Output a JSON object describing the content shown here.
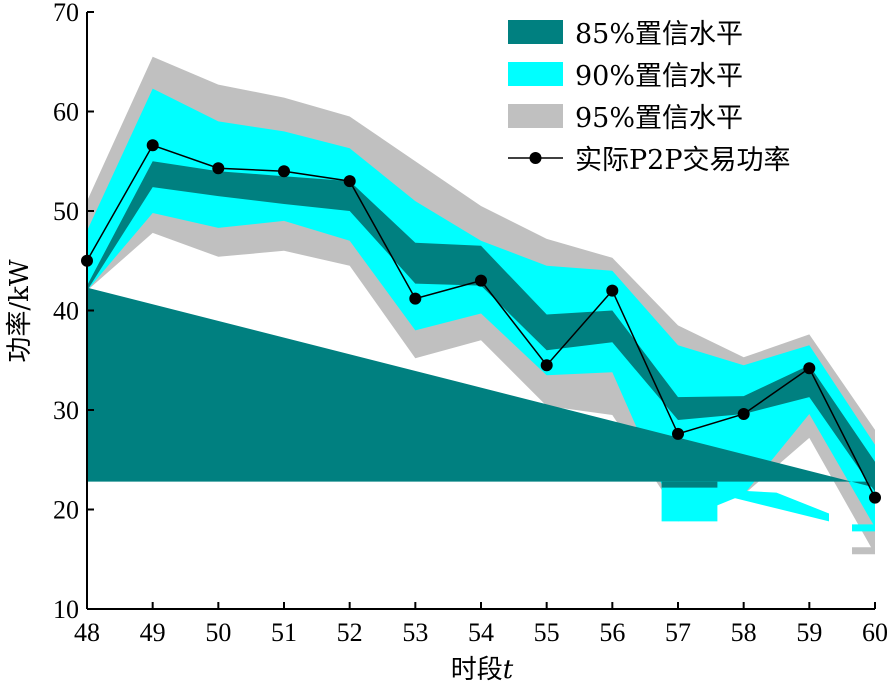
{
  "chart_data": {
    "type": "area",
    "title": "",
    "xlabel": "时段",
    "xlabel_var": "t",
    "ylabel": "功率/kW",
    "x": [
      48,
      49,
      50,
      51,
      52,
      53,
      54,
      55,
      56,
      57,
      58,
      59,
      60
    ],
    "xlim": [
      48,
      60
    ],
    "ylim": [
      10,
      70
    ],
    "yticks": [
      10,
      20,
      30,
      40,
      50,
      60,
      70
    ],
    "grid": false,
    "legend_position": "top-right",
    "series": [
      {
        "name": "95%置信水平",
        "kind": "band",
        "color": "#c0c0c0",
        "upper": [
          51.0,
          65.5,
          62.7,
          61.4,
          59.5,
          55.0,
          50.5,
          47.2,
          45.3,
          38.5,
          35.3,
          37.6,
          28.0
        ],
        "lower": [
          42.0,
          47.8,
          45.4,
          46.0,
          44.5,
          35.2,
          37.0,
          30.4,
          29.5,
          19.5,
          21.5,
          27.2,
          15.5
        ]
      },
      {
        "name": "90%置信水平",
        "kind": "band",
        "color": "#00ffff",
        "upper": [
          48.0,
          62.3,
          59.0,
          58.0,
          56.3,
          51.0,
          47.0,
          44.5,
          44.0,
          36.5,
          34.5,
          36.5,
          26.5
        ],
        "lower": [
          42.0,
          49.8,
          48.3,
          49.0,
          47.0,
          38.0,
          39.7,
          33.5,
          33.8,
          18.8,
          21.5,
          29.6,
          18.2
        ]
      },
      {
        "name": "85%置信水平",
        "kind": "band",
        "color": "#008080",
        "upper": [
          42.5,
          55.0,
          54.0,
          53.5,
          53.0,
          46.8,
          46.5,
          39.6,
          40.0,
          31.3,
          31.4,
          34.5,
          24.8
        ],
        "lower": [
          42.0,
          52.4,
          51.5,
          50.7,
          50.0,
          42.7,
          42.5,
          36.0,
          36.8,
          29.0,
          29.6,
          31.3,
          21.8
        ]
      },
      {
        "name": "实际P2P交易功率",
        "kind": "line",
        "color": "#000000",
        "values": [
          45.0,
          56.6,
          54.3,
          54.0,
          53.0,
          41.2,
          43.0,
          34.5,
          42.0,
          27.6,
          29.6,
          34.2,
          21.2
        ]
      }
    ],
    "legend_order": [
      "85%置信水平",
      "90%置信水平",
      "95%置信水平",
      "实际P2P交易功率"
    ]
  }
}
